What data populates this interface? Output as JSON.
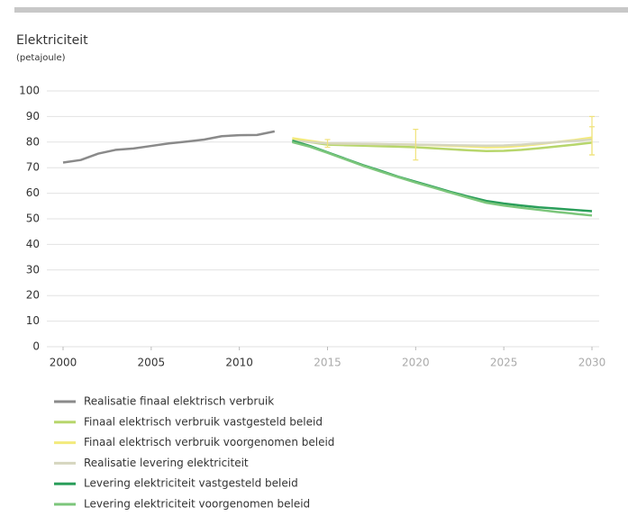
{
  "chart_data": {
    "type": "line",
    "title": "Elektriciteit",
    "subtitle": "(petajoule)",
    "x": [
      2000,
      2001,
      2002,
      2003,
      2004,
      2005,
      2006,
      2007,
      2008,
      2009,
      2010,
      2011,
      2012,
      2013,
      2014,
      2015,
      2016,
      2017,
      2018,
      2019,
      2020,
      2021,
      2022,
      2023,
      2024,
      2025,
      2026,
      2027,
      2028,
      2029,
      2030
    ],
    "xlim": [
      2000,
      2030
    ],
    "xticks": [
      2000,
      2005,
      2010,
      2015,
      2020,
      2025,
      2030
    ],
    "xtick_label_colors": [
      "#333333",
      "#333333",
      "#333333",
      "#aaaaaa",
      "#aaaaaa",
      "#aaaaaa",
      "#aaaaaa"
    ],
    "ylim": [
      0,
      100
    ],
    "yticks": [
      0,
      10,
      20,
      30,
      40,
      50,
      60,
      70,
      80,
      90,
      100
    ],
    "grid": true,
    "series": [
      {
        "name": "Realisatie finaal elektrisch verbruik",
        "color": "#8a8a8a",
        "values": [
          72,
          73,
          75.5,
          77,
          77.5,
          78.5,
          79.5,
          80.2,
          81,
          82.3,
          82.7,
          82.8,
          84.2,
          null,
          null,
          null,
          null,
          null,
          null,
          null,
          null,
          null,
          null,
          null,
          null,
          null,
          null,
          null,
          null,
          null,
          null
        ]
      },
      {
        "name": "Finaal elektrisch verbruik vastgesteld beleid",
        "color": "#b7d66c",
        "values": [
          null,
          null,
          null,
          null,
          null,
          null,
          null,
          null,
          null,
          null,
          null,
          null,
          null,
          81,
          80,
          79,
          78.8,
          78.6,
          78.4,
          78.2,
          78,
          77.6,
          77.2,
          76.8,
          76.5,
          76.6,
          77,
          77.6,
          78.3,
          79,
          79.8
        ]
      },
      {
        "name": "Finaal elektrisch verbruik voorgenomen beleid",
        "color": "#f3ea7c",
        "values": [
          null,
          null,
          null,
          null,
          null,
          null,
          null,
          null,
          null,
          null,
          null,
          null,
          null,
          81.5,
          80.5,
          79.5,
          79.4,
          79.3,
          79.2,
          79.1,
          79,
          78.8,
          78.5,
          78.3,
          78,
          78.1,
          78.5,
          79.2,
          80,
          80.8,
          81.8
        ]
      },
      {
        "name": "Realisatie levering elektriciteit",
        "color": "#d6d6bf",
        "values": [
          null,
          null,
          null,
          null,
          null,
          null,
          null,
          null,
          null,
          null,
          null,
          null,
          null,
          80.5,
          80,
          79.5,
          79.4,
          79.3,
          79.2,
          79.1,
          79,
          78.9,
          78.8,
          78.7,
          78.6,
          78.7,
          79,
          79.5,
          80,
          80.5,
          81
        ]
      },
      {
        "name": "Levering elektriciteit vastgesteld beleid",
        "color": "#2a9e5a",
        "values": [
          null,
          null,
          null,
          null,
          null,
          null,
          null,
          null,
          null,
          null,
          null,
          null,
          null,
          80.5,
          78.5,
          76,
          73.5,
          71,
          68.8,
          66.5,
          64.5,
          62.5,
          60.5,
          58.7,
          57,
          56,
          55.2,
          54.5,
          54,
          53.5,
          53
        ]
      },
      {
        "name": "Levering elektriciteit voorgenomen beleid",
        "color": "#7cc67b",
        "values": [
          null,
          null,
          null,
          null,
          null,
          null,
          null,
          null,
          null,
          null,
          null,
          null,
          null,
          80,
          78.2,
          75.8,
          73.3,
          70.8,
          68.5,
          66.3,
          64.2,
          62.2,
          60.2,
          58.2,
          56.3,
          55.2,
          54.3,
          53.5,
          52.7,
          52,
          51.3
        ]
      }
    ],
    "error_bars": [
      {
        "x": 2015,
        "low": 78,
        "high": 81,
        "color": "#f0e27a"
      },
      {
        "x": 2020,
        "low": 73,
        "high": 85,
        "color": "#f0e27a"
      },
      {
        "x": 2030,
        "low": 75,
        "high": 90,
        "color": "#f0e27a"
      },
      {
        "x": 2030,
        "low": 75,
        "high": 86,
        "color": "#f0e27a"
      }
    ]
  }
}
